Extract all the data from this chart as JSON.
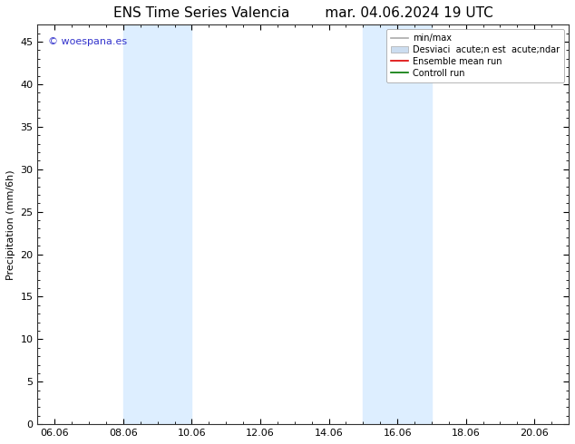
{
  "title_left": "ENS Time Series Valencia",
  "title_right": "mar. 04.06.2024 19 UTC",
  "ylabel": "Precipitation (mm/6h)",
  "xlabel": "",
  "watermark": "© woespana.es",
  "xlim_start": 5.5,
  "xlim_end": 21.0,
  "ylim": [
    0,
    47
  ],
  "yticks": [
    0,
    5,
    10,
    15,
    20,
    25,
    30,
    35,
    40,
    45
  ],
  "xtick_labels": [
    "06.06",
    "08.06",
    "10.06",
    "12.06",
    "14.06",
    "16.06",
    "18.06",
    "20.06"
  ],
  "xtick_positions": [
    6.0,
    8.0,
    10.0,
    12.0,
    14.0,
    16.0,
    18.0,
    20.0
  ],
  "shaded_regions": [
    {
      "xmin": 8.0,
      "xmax": 10.0
    },
    {
      "xmin": 15.0,
      "xmax": 17.0
    }
  ],
  "shade_color": "#ddeeff",
  "background_color": "#ffffff",
  "legend_items": [
    {
      "label": "min/max",
      "color": "#aaaaaa",
      "lw": 1.2,
      "ls": "-",
      "type": "line"
    },
    {
      "label": "Desviaci  acute;n est  acute;ndar",
      "color": "#ccddf0",
      "lw": 8,
      "ls": "-",
      "type": "patch"
    },
    {
      "label": "Ensemble mean run",
      "color": "#dd0000",
      "lw": 1.2,
      "ls": "-",
      "type": "line"
    },
    {
      "label": "Controll run",
      "color": "#007700",
      "lw": 1.2,
      "ls": "-",
      "type": "line"
    }
  ],
  "title_fontsize": 11,
  "axis_fontsize": 8,
  "tick_fontsize": 8,
  "legend_fontsize": 7,
  "watermark_color": "#3333cc",
  "watermark_fontsize": 8
}
